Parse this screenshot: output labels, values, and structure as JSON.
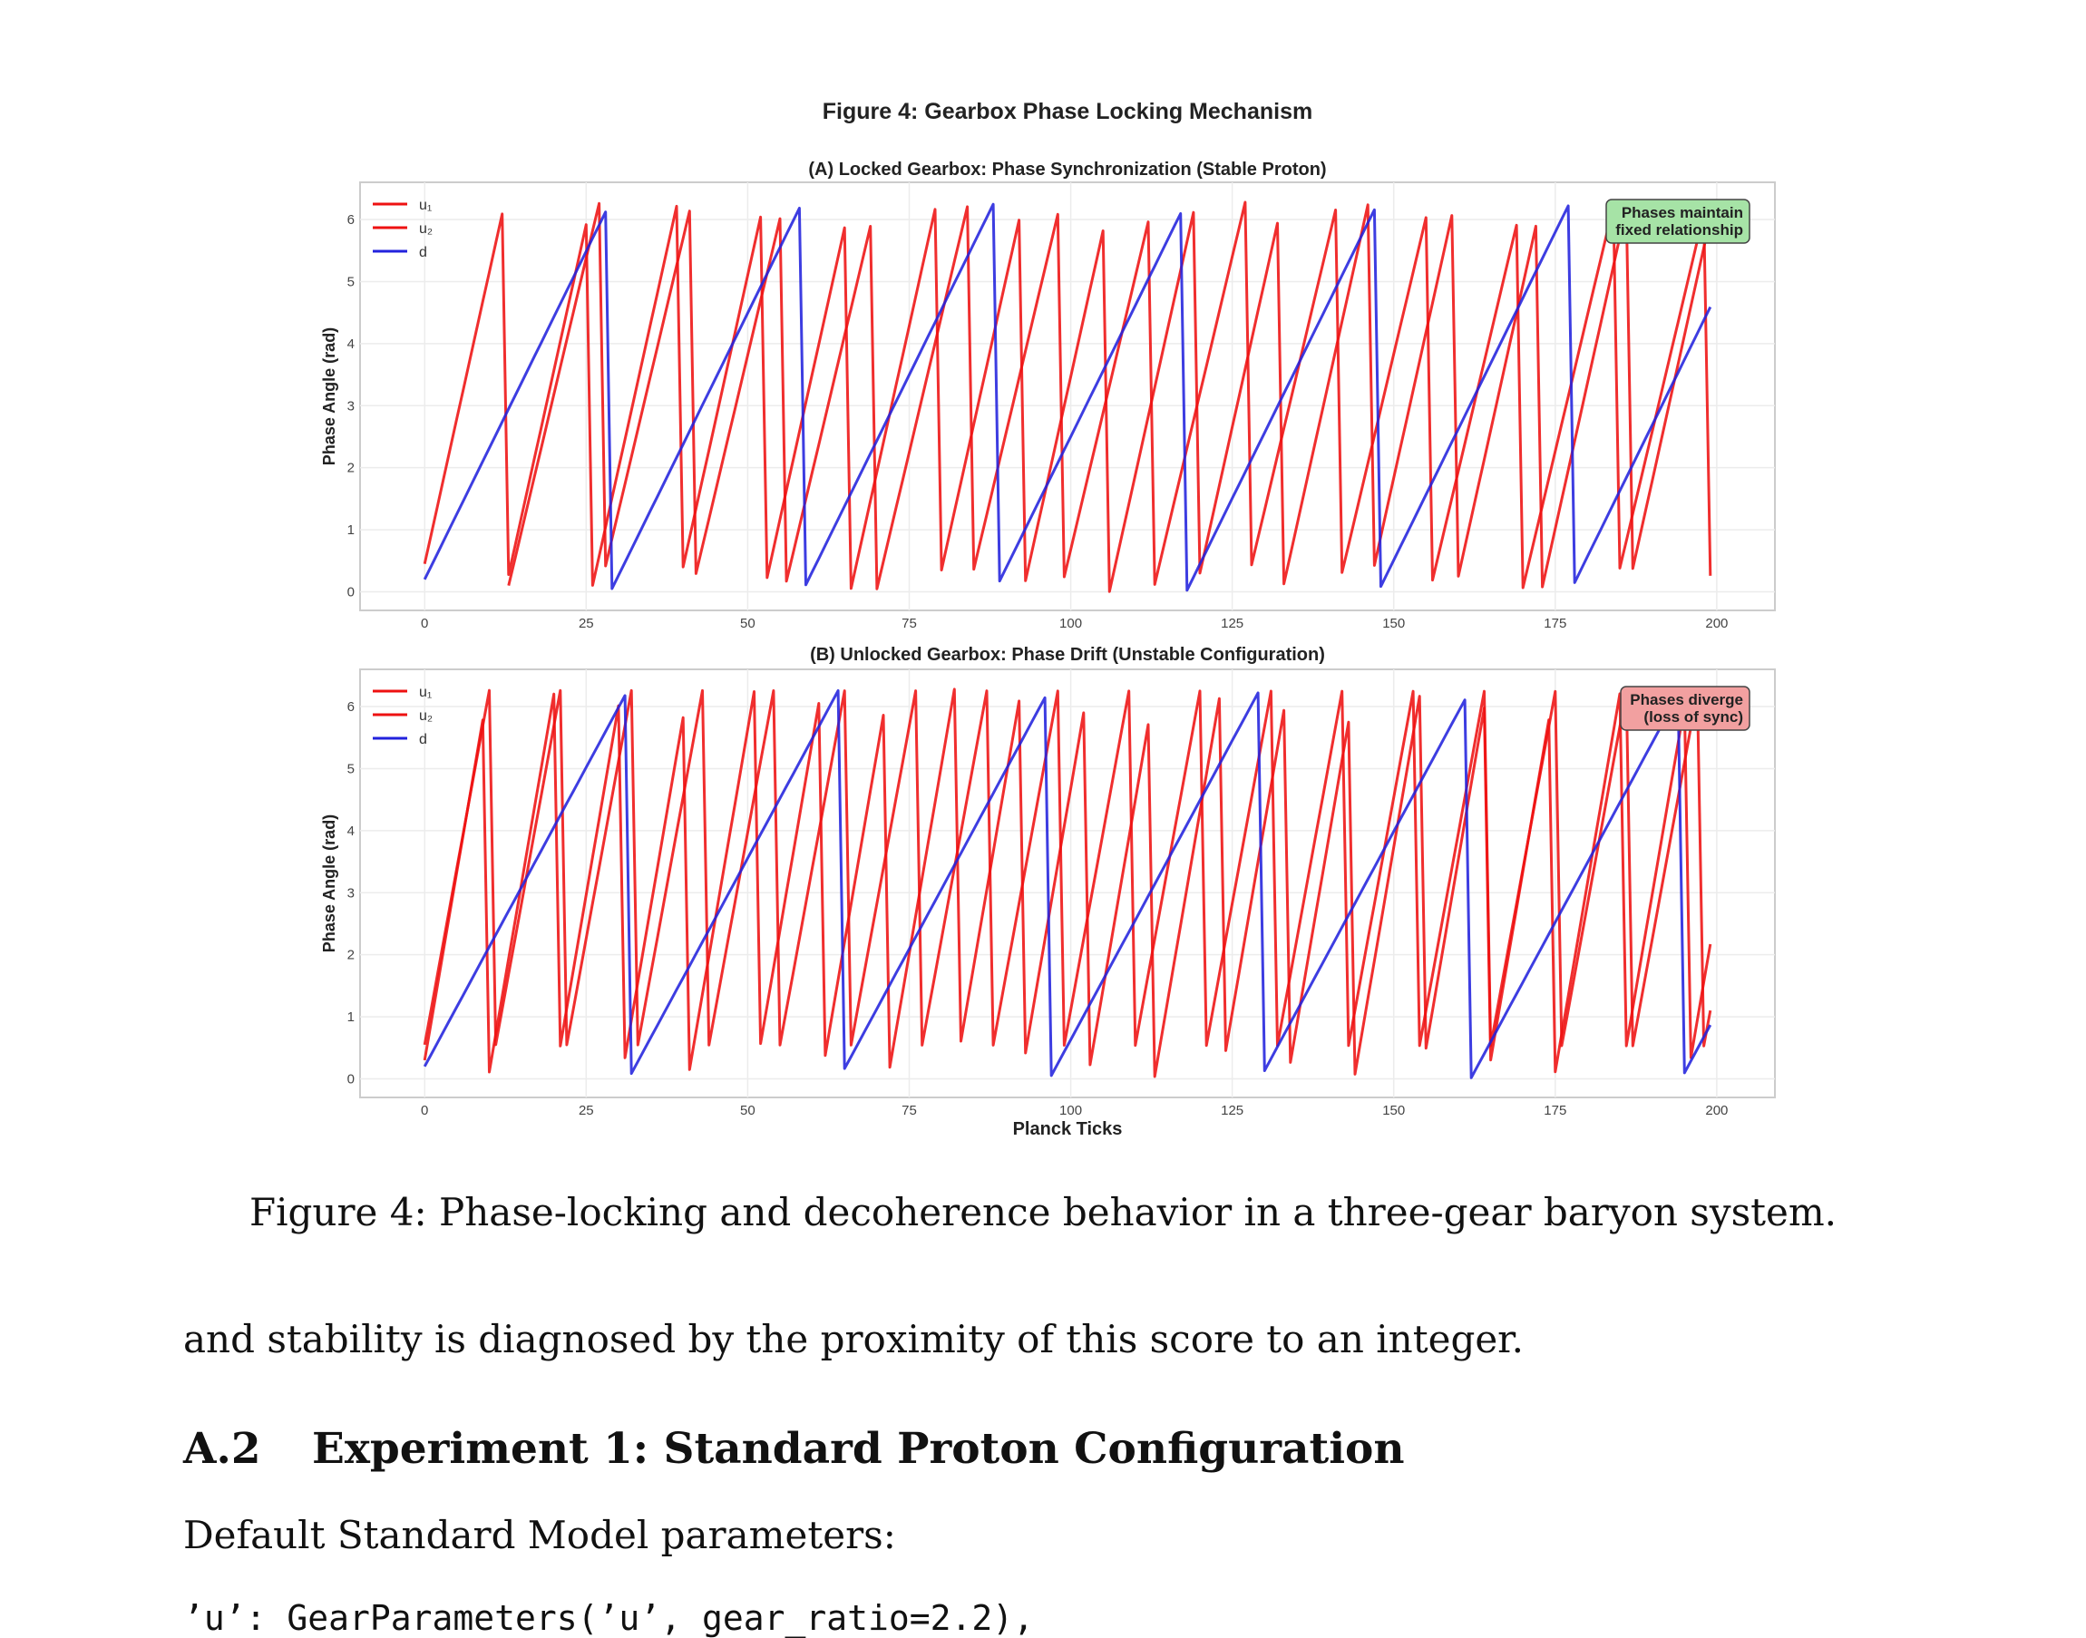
{
  "figure": {
    "suptitle": "Figure 4: Gearbox Phase Locking Mechanism",
    "panel_a_title": "(A) Locked Gearbox: Phase Synchronization (Stable Proton)",
    "panel_b_title": "(B) Unlocked Gearbox: Phase Drift (Unstable Configuration)",
    "ylabel": "Phase Angle (rad)",
    "xlabel": "Planck Ticks",
    "legend": [
      "u₁",
      "u₂",
      "d"
    ],
    "panel_a_annotation": [
      "Phases maintain",
      "fixed relationship"
    ],
    "panel_b_annotation": [
      "Phases diverge",
      "(loss of sync)"
    ],
    "x_ticks": [
      "0",
      "25",
      "50",
      "75",
      "100",
      "125",
      "150",
      "175",
      "200"
    ],
    "y_ticks": [
      "0",
      "1",
      "2",
      "3",
      "4",
      "5",
      "6"
    ]
  },
  "chart_data": [
    {
      "type": "line",
      "title": "(A) Locked Gearbox: Phase Synchronization (Stable Proton)",
      "xlabel": "",
      "ylabel": "Phase Angle (rad)",
      "xlim": [
        -10,
        209
      ],
      "ylim": [
        -0.3,
        6.6
      ],
      "annotation": "Phases maintain fixed relationship",
      "annotation_color": "#a6e3a6",
      "series": [
        {
          "name": "u₁",
          "color": "#ee1111",
          "start": 0.45,
          "rate": 0.47,
          "x_end": 199
        },
        {
          "name": "u₂",
          "color": "#ee1111",
          "start": 0.1,
          "rate": 0.44,
          "x_start": 13,
          "x_end": 199
        },
        {
          "name": "d",
          "color": "#2222dd",
          "start": 0.2,
          "rate": 0.2115,
          "x_end": 199
        }
      ]
    },
    {
      "type": "line",
      "title": "(B) Unlocked Gearbox: Phase Drift (Unstable Configuration)",
      "xlabel": "Planck Ticks",
      "ylabel": "Phase Angle (rad)",
      "xlim": [
        -10,
        209
      ],
      "ylim": [
        -0.3,
        6.6
      ],
      "annotation": "Phases diverge (loss of sync)",
      "annotation_color": "#f2a0a0",
      "series": [
        {
          "name": "u₁",
          "color": "#ee1111",
          "start": 0.55,
          "rate": 0.5711,
          "x_end": 199
        },
        {
          "name": "u₂",
          "color": "#ee1111",
          "start": 0.3,
          "rate": 0.6093,
          "x_end": 199
        },
        {
          "name": "d",
          "color": "#2222dd",
          "start": 0.2,
          "rate": 0.1928,
          "x_end": 199
        }
      ]
    }
  ],
  "caption": "Figure 4: Phase-locking and decoherence behavior in a three-gear baryon system.",
  "body_text": "and stability is diagnosed by the proximity of this score to an integer.",
  "section": {
    "number": "A.2",
    "title": "Experiment 1: Standard Proton Configuration"
  },
  "body_text_2": "Default Standard Model parameters:",
  "code_line": "’u’: GearParameters(’u’, gear_ratio=2.2),"
}
